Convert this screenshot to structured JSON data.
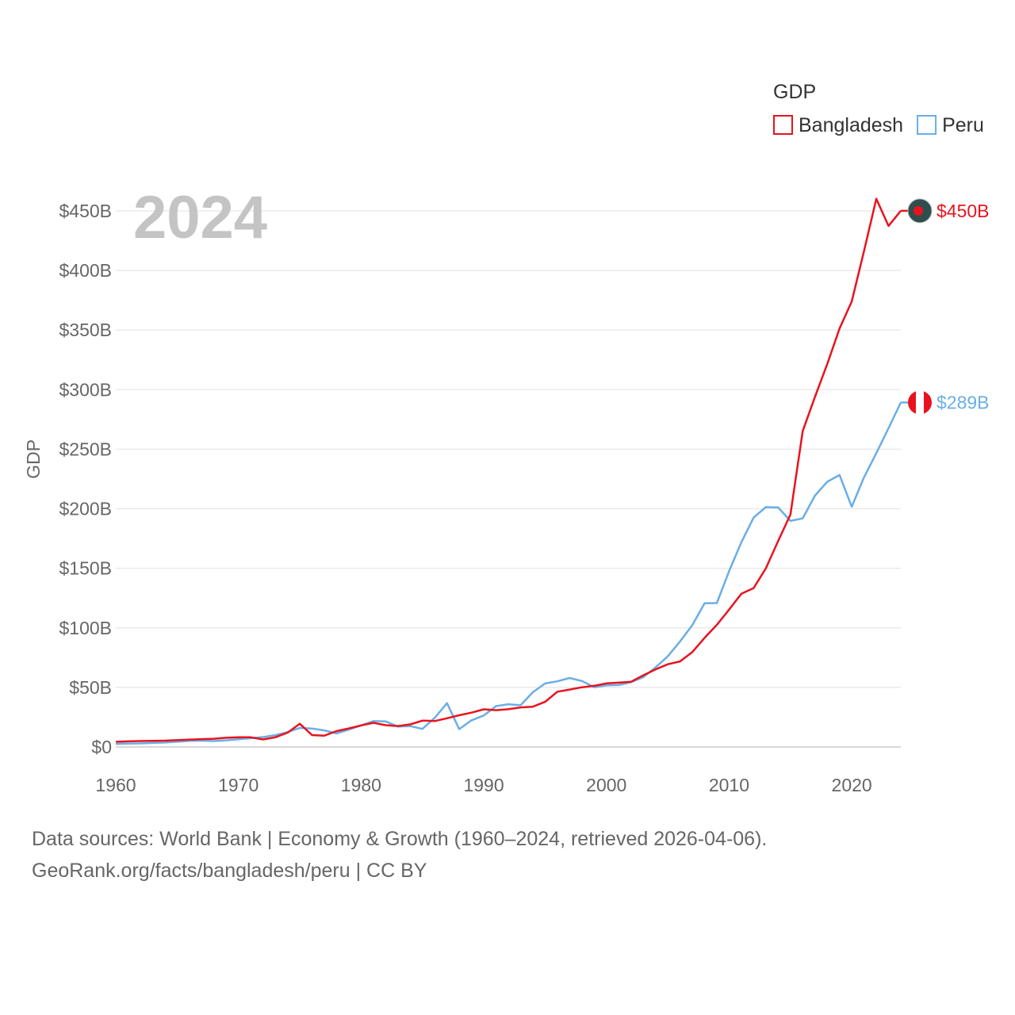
{
  "chart_data": {
    "type": "line",
    "year_label": "2024",
    "ylabel": "GDP",
    "legend_title": "GDP",
    "legend_position": "top-right",
    "x_range": [
      1960,
      2024
    ],
    "xticks": [
      {
        "value": 1960,
        "label": "1960"
      },
      {
        "value": 1970,
        "label": "1970"
      },
      {
        "value": 1980,
        "label": "1980"
      },
      {
        "value": 1990,
        "label": "1990"
      },
      {
        "value": 2000,
        "label": "2000"
      },
      {
        "value": 2010,
        "label": "2010"
      },
      {
        "value": 2020,
        "label": "2020"
      }
    ],
    "ylim": [
      0,
      450
    ],
    "yticks": [
      {
        "value": 0,
        "label": "$0"
      },
      {
        "value": 50,
        "label": "$50B"
      },
      {
        "value": 100,
        "label": "$100B"
      },
      {
        "value": 150,
        "label": "$150B"
      },
      {
        "value": 200,
        "label": "$200B"
      },
      {
        "value": 250,
        "label": "$250B"
      },
      {
        "value": 300,
        "label": "$300B"
      },
      {
        "value": 350,
        "label": "$350B"
      },
      {
        "value": 400,
        "label": "$400B"
      },
      {
        "value": 450,
        "label": "$450B"
      }
    ],
    "grid": true,
    "series": [
      {
        "name": "Bangladesh",
        "color": "#e8131e",
        "end_label": "$450B",
        "x": [
          1960,
          1961,
          1962,
          1963,
          1964,
          1965,
          1966,
          1967,
          1968,
          1969,
          1970,
          1971,
          1972,
          1973,
          1974,
          1975,
          1976,
          1977,
          1978,
          1979,
          1980,
          1981,
          1982,
          1983,
          1984,
          1985,
          1986,
          1987,
          1988,
          1989,
          1990,
          1991,
          1992,
          1993,
          1994,
          1995,
          1996,
          1997,
          1998,
          1999,
          2000,
          2001,
          2002,
          2003,
          2004,
          2005,
          2006,
          2007,
          2008,
          2009,
          2010,
          2011,
          2012,
          2013,
          2014,
          2015,
          2016,
          2017,
          2018,
          2019,
          2020,
          2021,
          2022,
          2023,
          2024
        ],
        "values": [
          4.3,
          4.7,
          5.0,
          5.2,
          5.3,
          5.7,
          6.1,
          6.6,
          6.9,
          7.7,
          8.1,
          8.1,
          6.3,
          8.1,
          12.0,
          19.5,
          10.0,
          9.5,
          13.3,
          15.6,
          18.1,
          20.3,
          18.3,
          17.6,
          19.0,
          22.1,
          21.8,
          24.1,
          26.6,
          28.8,
          31.6,
          30.9,
          31.7,
          33.2,
          33.8,
          37.9,
          46.4,
          48.2,
          50.1,
          51.3,
          53.4,
          54.0,
          54.7,
          60.2,
          65.1,
          69.4,
          71.8,
          79.6,
          91.6,
          102.5,
          115.3,
          128.6,
          133.4,
          149.9,
          172.9,
          195.1,
          265.2,
          293.8,
          321.4,
          351.2,
          374.0,
          416.3,
          460.2,
          437.4,
          450.1
        ]
      },
      {
        "name": "Peru",
        "color": "#6aaee6",
        "end_label": "$289B",
        "x": [
          1960,
          1961,
          1962,
          1963,
          1964,
          1965,
          1966,
          1967,
          1968,
          1969,
          1970,
          1971,
          1972,
          1973,
          1974,
          1975,
          1976,
          1977,
          1978,
          1979,
          1980,
          1981,
          1982,
          1983,
          1984,
          1985,
          1986,
          1987,
          1988,
          1989,
          1990,
          1991,
          1992,
          1993,
          1994,
          1995,
          1996,
          1997,
          1998,
          1999,
          2000,
          2001,
          2002,
          2003,
          2004,
          2005,
          2006,
          2007,
          2008,
          2009,
          2010,
          2011,
          2012,
          2013,
          2014,
          2015,
          2016,
          2017,
          2018,
          2019,
          2020,
          2021,
          2022,
          2023,
          2024
        ],
        "values": [
          2.6,
          2.8,
          3.0,
          3.4,
          3.7,
          4.4,
          5.1,
          5.3,
          5.0,
          5.6,
          6.5,
          7.4,
          8.3,
          9.9,
          12.5,
          16.0,
          15.5,
          13.9,
          11.4,
          14.6,
          18.1,
          21.7,
          21.5,
          17.1,
          17.5,
          15.2,
          24.4,
          36.8,
          15.0,
          22.4,
          26.4,
          34.3,
          35.9,
          35.0,
          45.9,
          53.3,
          55.1,
          57.9,
          55.4,
          50.2,
          51.7,
          52.0,
          54.4,
          58.6,
          66.8,
          76.1,
          88.6,
          102.2,
          120.6,
          120.8,
          147.5,
          171.8,
          192.6,
          201.4,
          201.1,
          189.8,
          191.9,
          211.0,
          222.6,
          228.3,
          201.7,
          226.4,
          246.7,
          267.6,
          289.2
        ]
      }
    ]
  },
  "source": {
    "line1": "Data sources: World Bank | Economy & Growth (1960–2024, retrieved 2026-04-06).",
    "line2": "GeoRank.org/facts/bangladesh/peru | CC BY"
  }
}
